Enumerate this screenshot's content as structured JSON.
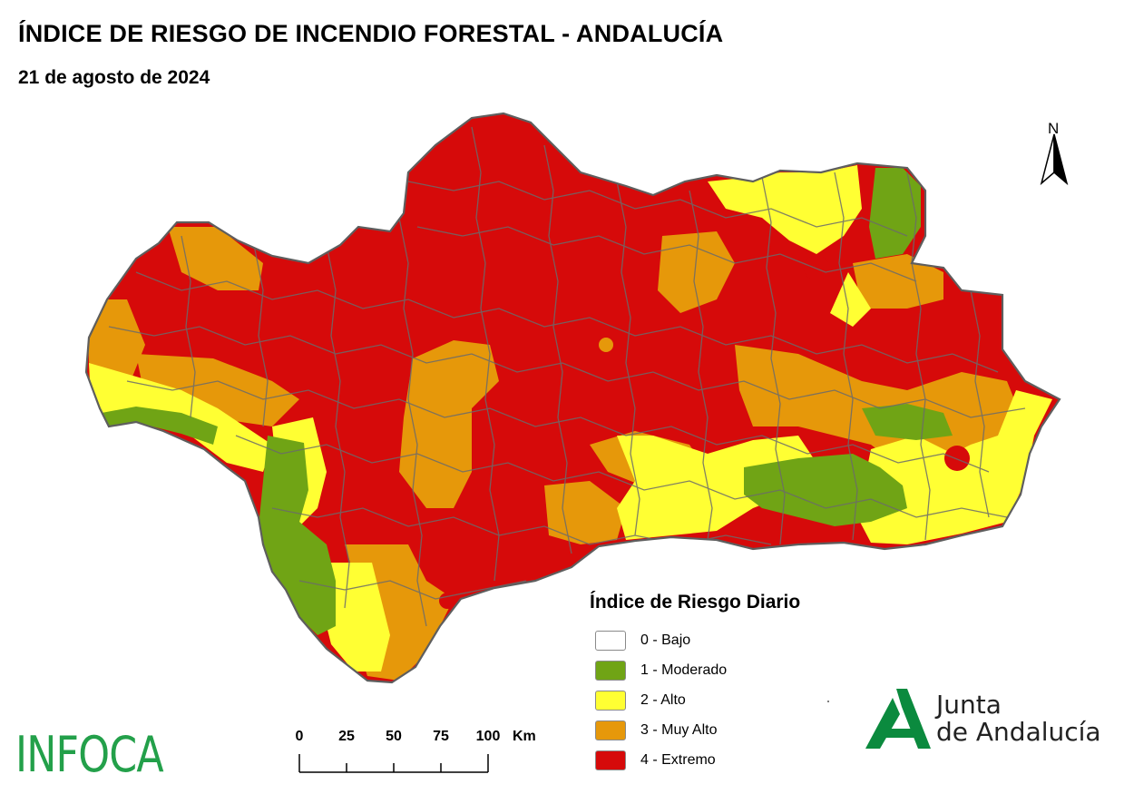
{
  "header": {
    "title": "ÍNDICE DE RIESGO DE INCENDIO FORESTAL - ANDALUCÍA",
    "date": "21 de agosto de 2024"
  },
  "north_arrow": {
    "label": "N"
  },
  "legend": {
    "title": "Índice de Riesgo Diario",
    "items": [
      {
        "label": "0 - Bajo",
        "color": "#ffffff"
      },
      {
        "label": "1 - Moderado",
        "color": "#70a415"
      },
      {
        "label": "2 - Alto",
        "color": "#ffff33"
      },
      {
        "label": "3 - Muy Alto",
        "color": "#e6980a"
      },
      {
        "label": "4 - Extremo",
        "color": "#d60a0a"
      }
    ]
  },
  "scale_bar": {
    "ticks": [
      "0",
      "25",
      "50",
      "75",
      "100"
    ],
    "units": "Km"
  },
  "branding": {
    "left_logo": "INFOCA",
    "right_logo_line1": "Junta",
    "right_logo_line2": "de Andalucía"
  },
  "map": {
    "region": "Andalucía",
    "border_color": "#6b6b6b",
    "dominant_risk": "4 - Extremo"
  }
}
